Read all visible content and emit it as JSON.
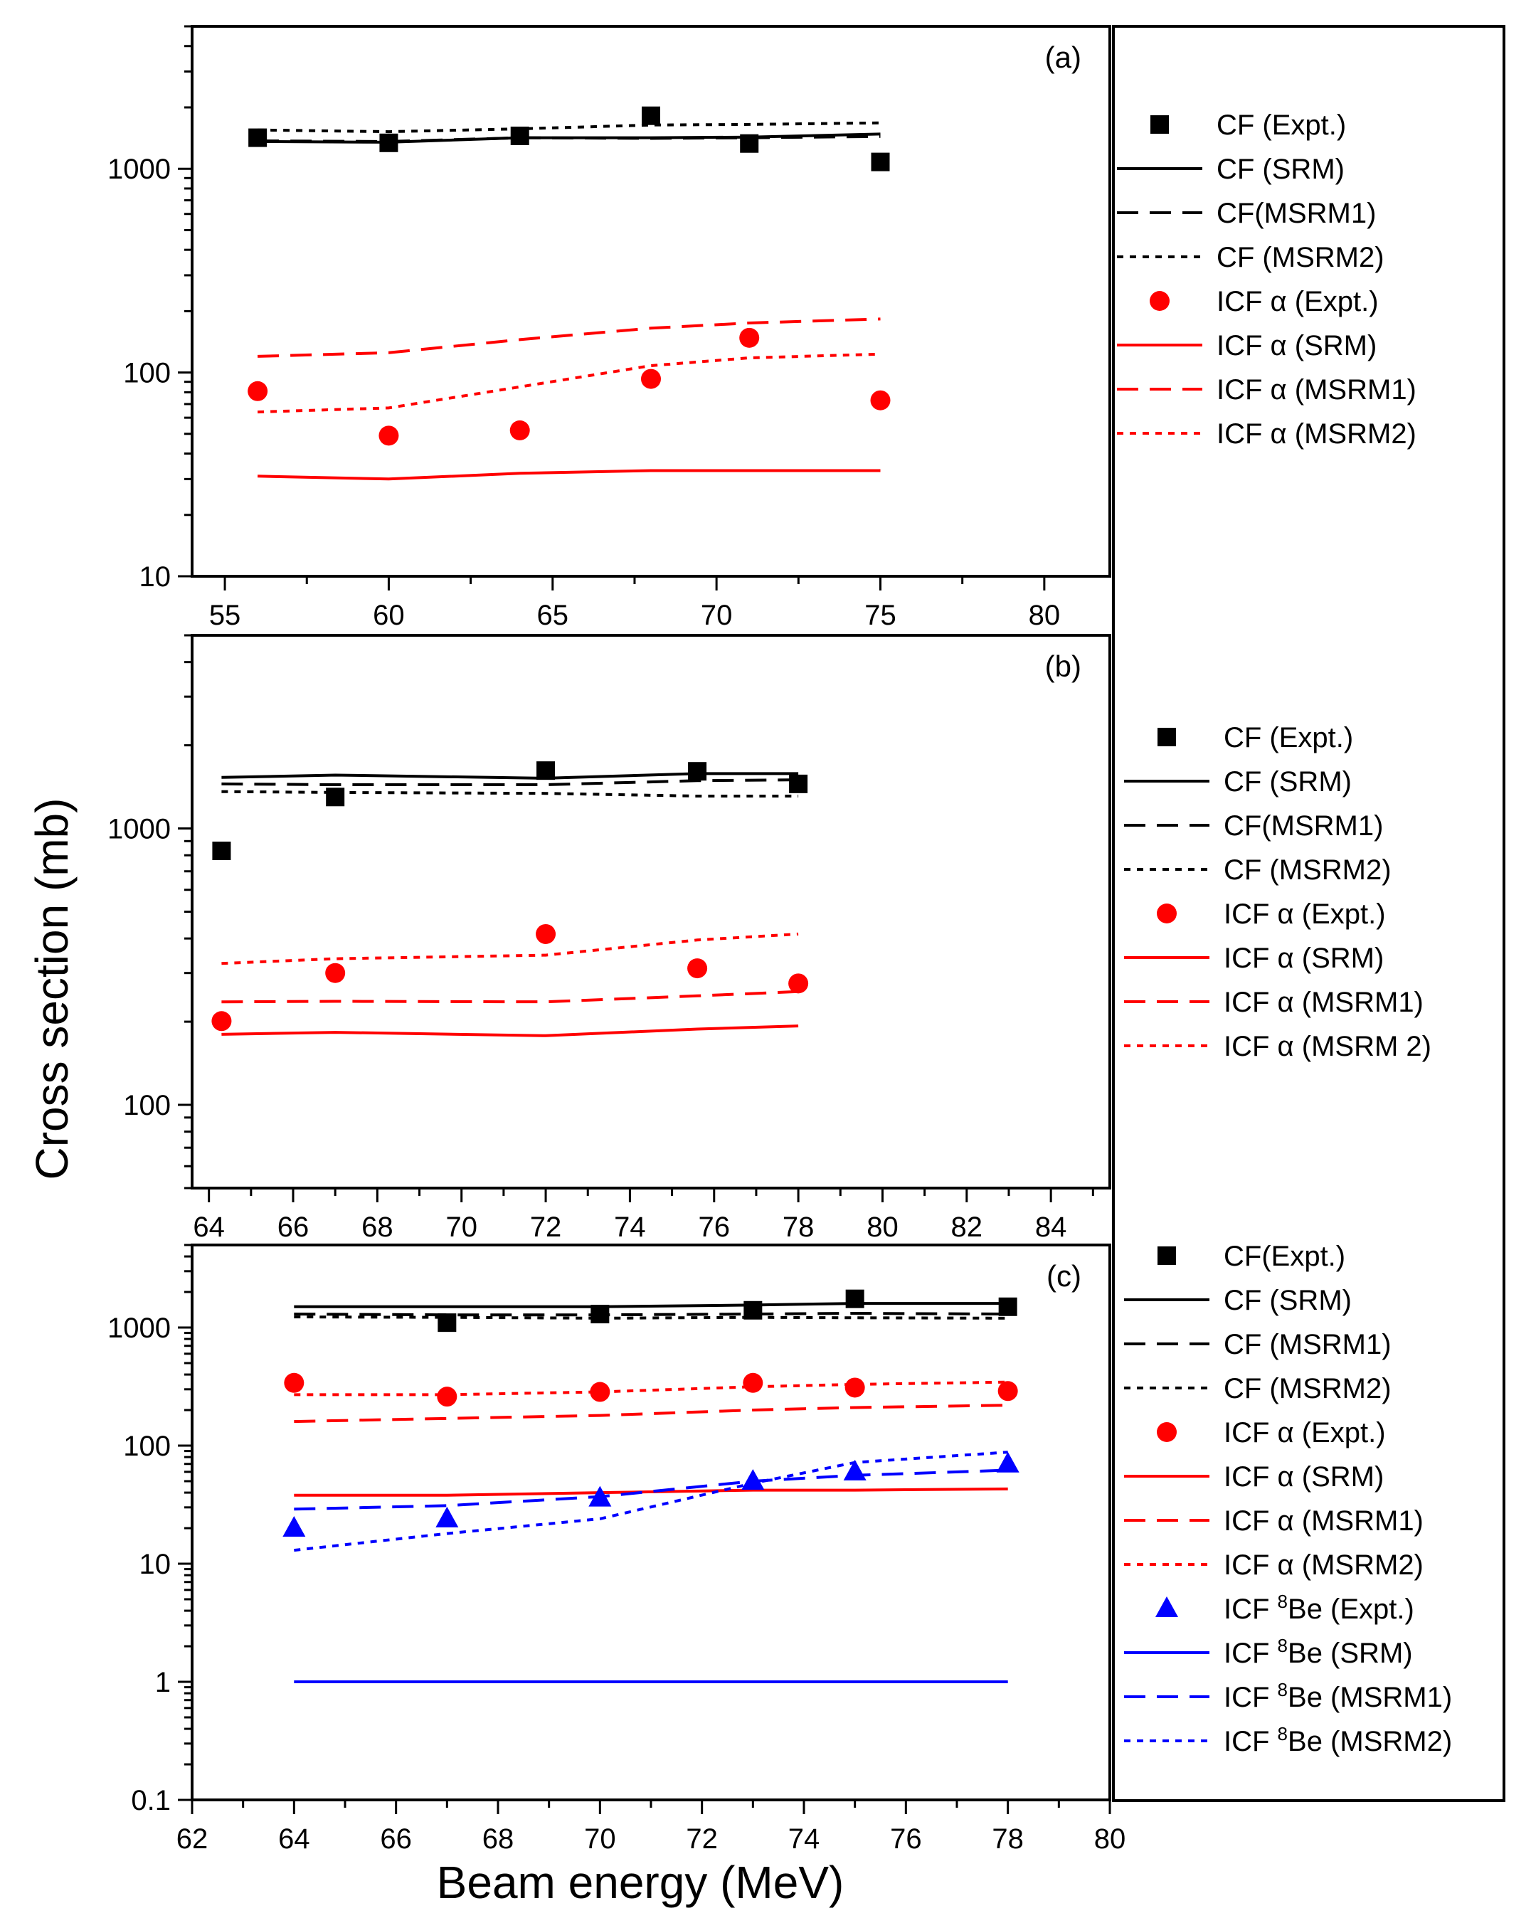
{
  "figure": {
    "ylabel": "Cross section (mb)",
    "xlabel": "Beam energy (MeV)"
  },
  "chart_data": [
    {
      "panel": "(a)",
      "type": "scatter",
      "xlim": [
        54,
        82
      ],
      "ylim": [
        10,
        5000
      ],
      "yscale": "log",
      "xticks": [
        55,
        60,
        65,
        70,
        75,
        80
      ],
      "yticks": [
        10,
        100,
        1000
      ],
      "series": [
        {
          "name": "CF (Expt.)",
          "kind": "marker",
          "marker": "square",
          "color": "#000000",
          "x": [
            56,
            60,
            64,
            68,
            71,
            75
          ],
          "y": [
            1420,
            1340,
            1450,
            1820,
            1330,
            1080
          ]
        },
        {
          "name": "CF (SRM)",
          "kind": "line",
          "dash": "solid",
          "color": "#000000",
          "x": [
            56,
            60,
            64,
            68,
            71,
            75
          ],
          "y": [
            1360,
            1350,
            1420,
            1420,
            1430,
            1480
          ]
        },
        {
          "name": "CF(MSRM1)",
          "kind": "line",
          "dash": "dashed",
          "color": "#000000",
          "x": [
            56,
            60,
            64,
            68,
            71,
            75
          ],
          "y": [
            1370,
            1360,
            1420,
            1410,
            1420,
            1440
          ]
        },
        {
          "name": "CF (MSRM2)",
          "kind": "line",
          "dash": "dotted",
          "color": "#000000",
          "x": [
            56,
            60,
            64,
            68,
            71,
            75
          ],
          "y": [
            1550,
            1520,
            1570,
            1640,
            1650,
            1680
          ]
        },
        {
          "name": "ICF α (Expt.)",
          "kind": "marker",
          "marker": "circle",
          "color": "#ff0000",
          "x": [
            56,
            60,
            64,
            68,
            71,
            75
          ],
          "y": [
            81,
            49,
            52,
            93,
            148,
            73
          ]
        },
        {
          "name": "ICF α (SRM)",
          "kind": "line",
          "dash": "solid",
          "color": "#ff0000",
          "x": [
            56,
            60,
            64,
            68,
            71,
            75
          ],
          "y": [
            31,
            30,
            32,
            33,
            33,
            33
          ]
        },
        {
          "name": "ICF α (MSRM1)",
          "kind": "line",
          "dash": "dashed",
          "color": "#ff0000",
          "x": [
            56,
            60,
            64,
            68,
            71,
            75
          ],
          "y": [
            120,
            125,
            145,
            165,
            175,
            183
          ]
        },
        {
          "name": "ICF α (MSRM2)",
          "kind": "line",
          "dash": "dotted",
          "color": "#ff0000",
          "x": [
            56,
            60,
            64,
            68,
            71,
            75
          ],
          "y": [
            64,
            67,
            85,
            108,
            118,
            123
          ]
        }
      ]
    },
    {
      "panel": "(b)",
      "type": "scatter",
      "xlim": [
        63.6,
        85.4
      ],
      "ylim": [
        50,
        5000
      ],
      "yscale": "log",
      "xticks": [
        64,
        66,
        68,
        70,
        72,
        74,
        76,
        78,
        80,
        82,
        84
      ],
      "yticks": [
        100,
        1000
      ],
      "series": [
        {
          "name": "CF (Expt.)",
          "kind": "marker",
          "marker": "square",
          "color": "#000000",
          "x": [
            64.3,
            67,
            72,
            75.6,
            78
          ],
          "y": [
            830,
            1300,
            1620,
            1610,
            1450
          ]
        },
        {
          "name": "CF (SRM)",
          "kind": "line",
          "dash": "solid",
          "color": "#000000",
          "x": [
            64.3,
            67,
            72,
            75.6,
            78
          ],
          "y": [
            1530,
            1560,
            1520,
            1580,
            1580
          ]
        },
        {
          "name": "CF(MSRM1)",
          "kind": "line",
          "dash": "dashed",
          "color": "#000000",
          "x": [
            64.3,
            67,
            72,
            75.6,
            78
          ],
          "y": [
            1450,
            1440,
            1440,
            1490,
            1500
          ]
        },
        {
          "name": "CF (MSRM2)",
          "kind": "line",
          "dash": "dotted",
          "color": "#000000",
          "x": [
            64.3,
            67,
            72,
            75.6,
            78
          ],
          "y": [
            1360,
            1350,
            1340,
            1310,
            1310
          ]
        },
        {
          "name": "ICF α (Expt.)",
          "kind": "marker",
          "marker": "circle",
          "color": "#ff0000",
          "x": [
            64.3,
            67,
            72,
            75.6,
            78
          ],
          "y": [
            201,
            300,
            415,
            312,
            275
          ]
        },
        {
          "name": "ICF α (SRM)",
          "kind": "line",
          "dash": "solid",
          "color": "#ff0000",
          "x": [
            64.3,
            67,
            72,
            75.6,
            78
          ],
          "y": [
            180,
            183,
            178,
            188,
            193
          ]
        },
        {
          "name": "ICF α (MSRM1)",
          "kind": "line",
          "dash": "dashed",
          "color": "#ff0000",
          "x": [
            64.3,
            67,
            72,
            75.6,
            78
          ],
          "y": [
            236,
            237,
            236,
            248,
            257
          ]
        },
        {
          "name": "ICF α (MSRM 2)",
          "kind": "line",
          "dash": "dotted",
          "color": "#ff0000",
          "x": [
            64.3,
            67,
            72,
            75.6,
            78
          ],
          "y": [
            325,
            338,
            348,
            395,
            415
          ]
        }
      ]
    },
    {
      "panel": "(c)",
      "type": "scatter",
      "xlim": [
        62,
        80
      ],
      "ylim": [
        0.1,
        5000
      ],
      "yscale": "log",
      "xticks": [
        62,
        64,
        66,
        68,
        70,
        72,
        74,
        76,
        78,
        80
      ],
      "yticks": [
        0.1,
        1,
        10,
        100,
        1000
      ],
      "series": [
        {
          "name": "CF(Expt.)",
          "kind": "marker",
          "marker": "square",
          "color": "#000000",
          "x": [
            67,
            70,
            73,
            75,
            78
          ],
          "y": [
            1100,
            1300,
            1400,
            1750,
            1500
          ]
        },
        {
          "name": "CF (SRM)",
          "kind": "line",
          "dash": "solid",
          "color": "#000000",
          "x": [
            64,
            67,
            70,
            73,
            75,
            78
          ],
          "y": [
            1500,
            1500,
            1500,
            1550,
            1600,
            1600
          ]
        },
        {
          "name": "CF (MSRM1)",
          "kind": "line",
          "dash": "dashed",
          "color": "#000000",
          "x": [
            64,
            67,
            70,
            73,
            75,
            78
          ],
          "y": [
            1300,
            1280,
            1280,
            1300,
            1320,
            1300
          ]
        },
        {
          "name": "CF (MSRM2)",
          "kind": "line",
          "dash": "dotted",
          "color": "#000000",
          "x": [
            64,
            67,
            70,
            73,
            75,
            78
          ],
          "y": [
            1230,
            1220,
            1200,
            1220,
            1210,
            1200
          ]
        },
        {
          "name": "ICF α (Expt.)",
          "kind": "marker",
          "marker": "circle",
          "color": "#ff0000",
          "x": [
            64,
            67,
            70,
            73,
            75,
            78
          ],
          "y": [
            340,
            260,
            285,
            340,
            310,
            290
          ]
        },
        {
          "name": "ICF α (SRM)",
          "kind": "line",
          "dash": "solid",
          "color": "#ff0000",
          "x": [
            64,
            67,
            70,
            73,
            75,
            78
          ],
          "y": [
            38,
            38,
            40,
            42,
            42,
            43
          ]
        },
        {
          "name": "ICF α (MSRM1)",
          "kind": "line",
          "dash": "dashed",
          "color": "#ff0000",
          "x": [
            64,
            67,
            70,
            73,
            75,
            78
          ],
          "y": [
            160,
            170,
            180,
            200,
            210,
            220
          ]
        },
        {
          "name": "ICF α (MSRM2)",
          "kind": "line",
          "dash": "dotted",
          "color": "#ff0000",
          "x": [
            64,
            67,
            70,
            73,
            75,
            78
          ],
          "y": [
            270,
            270,
            285,
            315,
            330,
            345
          ]
        },
        {
          "name": "ICF 8Be (Expt.)",
          "label_prefix": "ICF ",
          "label_sup": "8",
          "label_suffix": "Be (Expt.)",
          "kind": "marker",
          "marker": "triangle",
          "color": "#0000ff",
          "x": [
            64,
            67,
            70,
            73,
            75,
            78
          ],
          "y": [
            20,
            24,
            36,
            50,
            60,
            70
          ]
        },
        {
          "name": "ICF 8Be (SRM)",
          "label_prefix": "ICF ",
          "label_sup": "8",
          "label_suffix": "Be (SRM)",
          "kind": "line",
          "dash": "solid",
          "color": "#0000ff",
          "x": [
            64,
            78
          ],
          "y": [
            1,
            1
          ]
        },
        {
          "name": "ICF 8Be (MSRM1)",
          "label_prefix": "ICF ",
          "label_sup": "8",
          "label_suffix": "Be (MSRM1)",
          "kind": "line",
          "dash": "dashed",
          "color": "#0000ff",
          "x": [
            64,
            67,
            70,
            73,
            75,
            78
          ],
          "y": [
            29,
            31,
            37,
            50,
            56,
            62
          ]
        },
        {
          "name": "ICF 8Be (MSRM2)",
          "label_prefix": "ICF ",
          "label_sup": "8",
          "label_suffix": "Be (MSRM2)",
          "kind": "line",
          "dash": "dotted",
          "color": "#0000ff",
          "x": [
            64,
            67,
            70,
            73,
            75,
            78
          ],
          "y": [
            13,
            18,
            24,
            48,
            72,
            88
          ]
        }
      ]
    }
  ]
}
